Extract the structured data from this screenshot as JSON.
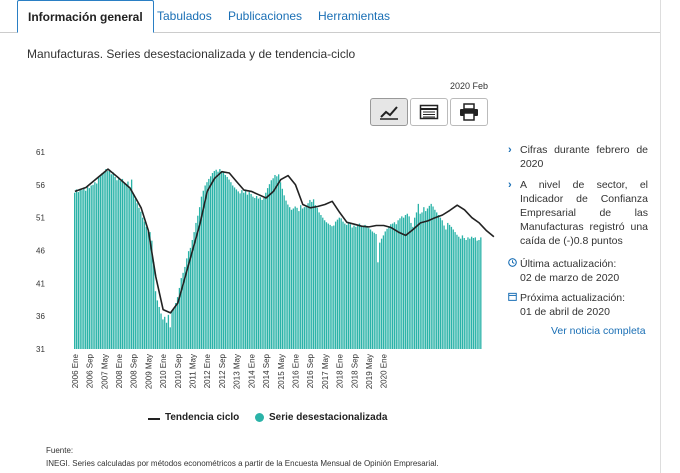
{
  "tabs": [
    {
      "label": "Información general"
    },
    {
      "label": "Tabulados"
    },
    {
      "label": "Publicaciones"
    },
    {
      "label": "Herramientas"
    }
  ],
  "subtitle": "Manufacturas. Series desestacionalizada y de tendencia-ciclo",
  "period_label": "2020 Feb",
  "toolbar": {
    "icons": [
      "line-chart-icon",
      "table-icon",
      "print-icon"
    ]
  },
  "colors": {
    "accent": "#1a6fb5",
    "bars": "#2bb3a8",
    "trend": "#222222"
  },
  "chart_data": {
    "type": "bar",
    "ylim": [
      31,
      61
    ],
    "yticks": [
      31,
      36,
      41,
      46,
      51,
      56,
      61
    ],
    "xtick_labels": [
      "2006 Ene",
      "2006 Sep",
      "2007 May",
      "2008 Ene",
      "2008 Sep",
      "2009 May",
      "2010 Ene",
      "2010 Sep",
      "2011 May",
      "2012 Ene",
      "2012 Sep",
      "2013 May",
      "2014 Ene",
      "2014 Sep",
      "2015 May",
      "2016 Ene",
      "2016 Sep",
      "2017 May",
      "2018 Ene",
      "2018 Sep",
      "2019 May",
      "2020 Ene"
    ],
    "series": [
      {
        "name": "Tendencia ciclo",
        "kind": "line",
        "keypoints": [
          [
            0,
            55.0
          ],
          [
            6,
            55.6
          ],
          [
            12,
            57.0
          ],
          [
            18,
            58.4
          ],
          [
            24,
            57.0
          ],
          [
            30,
            55.5
          ],
          [
            36,
            52.5
          ],
          [
            40,
            49.0
          ],
          [
            44,
            42.0
          ],
          [
            48,
            37.0
          ],
          [
            52,
            36.5
          ],
          [
            56,
            38.0
          ],
          [
            60,
            42.0
          ],
          [
            64,
            46.0
          ],
          [
            68,
            50.0
          ],
          [
            72,
            55.0
          ],
          [
            76,
            57.0
          ],
          [
            80,
            58.0
          ],
          [
            84,
            57.8
          ],
          [
            88,
            56.5
          ],
          [
            92,
            55.2
          ],
          [
            96,
            55.0
          ],
          [
            100,
            54.5
          ],
          [
            104,
            54.0
          ],
          [
            108,
            55.0
          ],
          [
            112,
            56.8
          ],
          [
            116,
            57.4
          ],
          [
            120,
            56.0
          ],
          [
            124,
            53.0
          ],
          [
            128,
            52.5
          ],
          [
            132,
            52.7
          ],
          [
            136,
            53.0
          ],
          [
            140,
            53.5
          ],
          [
            144,
            51.8
          ],
          [
            148,
            50.3
          ],
          [
            152,
            50.0
          ],
          [
            156,
            49.7
          ],
          [
            160,
            49.6
          ],
          [
            164,
            49.8
          ],
          [
            168,
            49.8
          ],
          [
            172,
            49.5
          ],
          [
            176,
            48.8
          ],
          [
            180,
            48.3
          ],
          [
            184,
            49.2
          ],
          [
            188,
            50.2
          ],
          [
            192,
            50.5
          ],
          [
            196,
            51.0
          ],
          [
            200,
            51.4
          ],
          [
            204,
            52.1
          ],
          [
            208,
            52.9
          ],
          [
            212,
            52.2
          ],
          [
            216,
            51.0
          ],
          [
            220,
            50.2
          ],
          [
            224,
            49.0
          ],
          [
            228,
            48.1
          ]
        ]
      },
      {
        "name": "Serie desestacionalizada",
        "kind": "bar",
        "values": [
          54.8,
          55.3,
          54.9,
          55.4,
          55.2,
          55.6,
          55.1,
          55.8,
          55.5,
          55.9,
          56.0,
          56.4,
          56.2,
          57.1,
          57.3,
          57.8,
          58.0,
          58.4,
          58.1,
          58.3,
          57.6,
          57.9,
          57.2,
          56.7,
          57.0,
          56.6,
          56.9,
          56.3,
          56.0,
          56.5,
          55.4,
          56.8,
          54.6,
          53.8,
          53.2,
          52.5,
          51.9,
          51.0,
          50.4,
          49.6,
          49.0,
          48.8,
          47.5,
          44.2,
          39.8,
          38.4,
          37.4,
          36.4,
          35.5,
          35.9,
          35.0,
          36.2,
          34.3,
          36.8,
          37.2,
          38.0,
          38.9,
          40.3,
          41.8,
          42.6,
          43.5,
          44.8,
          45.9,
          46.4,
          47.6,
          48.8,
          50.2,
          51.3,
          52.6,
          54.2,
          55.1,
          55.9,
          56.4,
          56.9,
          57.3,
          57.8,
          58.1,
          58.3,
          58.0,
          58.4,
          58.1,
          57.9,
          57.5,
          57.2,
          56.8,
          56.4,
          55.9,
          55.6,
          55.3,
          55.0,
          54.7,
          55.2,
          54.8,
          55.3,
          54.5,
          54.9,
          54.6,
          54.2,
          54.0,
          54.3,
          53.9,
          54.1,
          53.7,
          54.0,
          54.8,
          55.5,
          56.1,
          56.7,
          57.0,
          57.5,
          57.3,
          57.6,
          56.4,
          55.4,
          54.4,
          53.6,
          53.0,
          52.6,
          52.2,
          52.4,
          52.7,
          52.5,
          52.0,
          52.9,
          52.4,
          52.6,
          52.8,
          53.2,
          53.7,
          53.4,
          53.8,
          52.9,
          52.5,
          51.8,
          51.4,
          51.0,
          50.6,
          50.3,
          50.1,
          49.9,
          49.7,
          49.8,
          50.4,
          50.7,
          51.0,
          50.9,
          50.4,
          50.1,
          49.9,
          50.2,
          50.0,
          49.5,
          49.8,
          49.6,
          49.9,
          50.1,
          49.7,
          49.8,
          49.9,
          49.6,
          49.4,
          49.2,
          48.9,
          48.7,
          48.5,
          44.2,
          47.2,
          47.8,
          48.3,
          48.9,
          49.3,
          49.7,
          50.0,
          50.1,
          50.3,
          50.0,
          50.6,
          50.9,
          51.2,
          51.0,
          51.4,
          51.6,
          51.2,
          50.2,
          49.6,
          51.0,
          51.8,
          53.1,
          51.6,
          51.8,
          52.6,
          52.0,
          52.4,
          52.8,
          53.1,
          52.7,
          52.2,
          51.8,
          51.4,
          51.0,
          50.6,
          49.8,
          49.2,
          50.2,
          49.9,
          49.6,
          49.2,
          48.8,
          48.4,
          48.1,
          47.8,
          48.3,
          47.9,
          47.6,
          48.0,
          47.8,
          48.1,
          47.9,
          48.0,
          47.5,
          47.6,
          48.0
        ]
      }
    ],
    "legend": [
      "Tendencia ciclo",
      "Serie desestacionalizada"
    ]
  },
  "info": {
    "item1": "Cifras durante febrero de 2020",
    "item2": "A nivel de sector, el Indicador de Confianza Empresarial de las Manufacturas registró una caída de (-)0.8 puntos",
    "last_update_label": "Última actualización:",
    "last_update_date": "02 de marzo de 2020",
    "next_update_label": "Próxima actualización:",
    "next_update_date": "01 de abril de 2020",
    "link": "Ver noticia completa"
  },
  "footer": {
    "source_label": "Fuente:",
    "source_text": "INEGI. Series calculadas por métodos econométricos a partir de la Encuesta Mensual de Opinión Empresarial."
  }
}
